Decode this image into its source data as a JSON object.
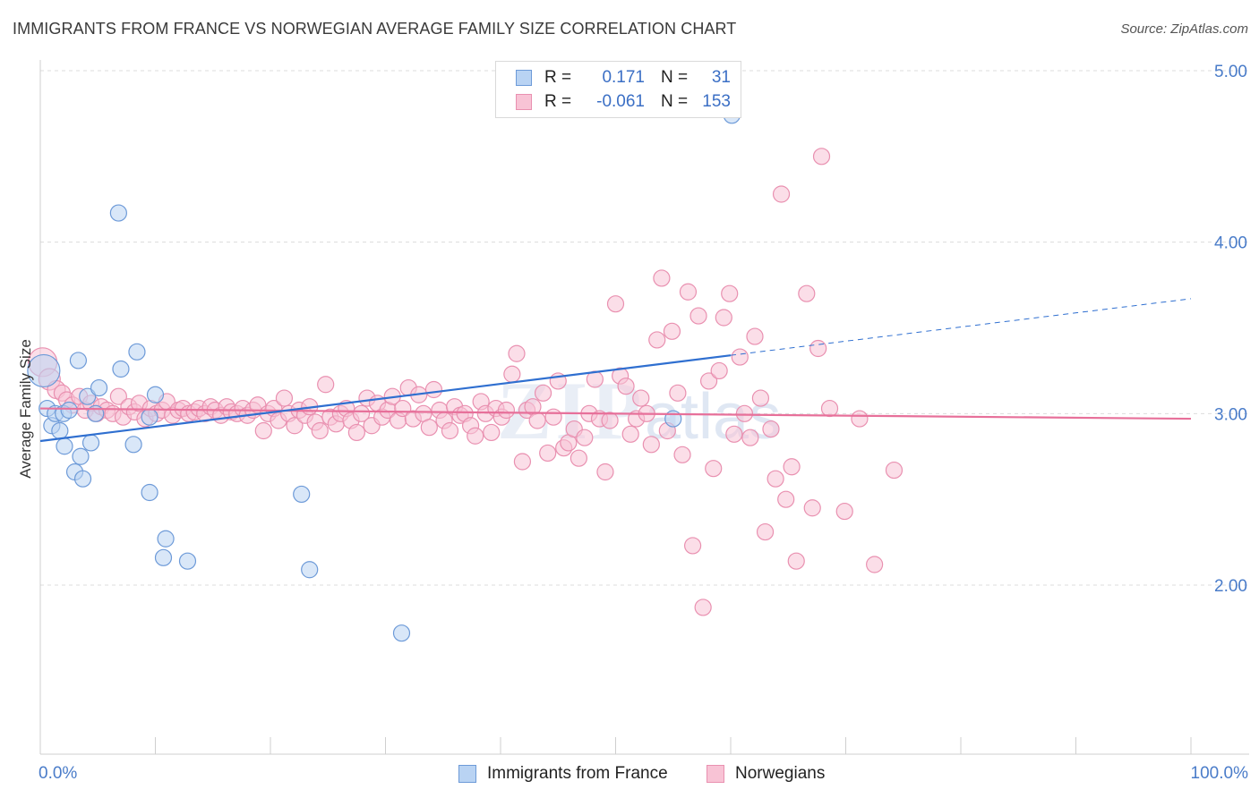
{
  "title": "IMMIGRANTS FROM FRANCE VS NORWEGIAN AVERAGE FAMILY SIZE CORRELATION CHART",
  "source": "Source: ZipAtlas.com",
  "legend": {
    "series1": {
      "r_label": "R =",
      "r_value": "0.171",
      "n_label": "N =",
      "n_value": "31"
    },
    "series2": {
      "r_label": "R =",
      "r_value": "-0.061",
      "n_label": "N =",
      "n_value": "153"
    }
  },
  "bottom_legend": {
    "series1": "Immigrants from France",
    "series2": "Norwegians"
  },
  "colors": {
    "blue_fill": "#b9d3f3",
    "blue_stroke": "#6d9ad8",
    "blue_line": "#2f6fd0",
    "pink_fill": "#f8c3d5",
    "pink_stroke": "#e990b0",
    "pink_line": "#e7709a",
    "axis_label": "#4a7cc9"
  },
  "chart_data": {
    "type": "scatter",
    "title": "IMMIGRANTS FROM FRANCE VS NORWEGIAN AVERAGE FAMILY SIZE CORRELATION CHART",
    "xlabel": "",
    "ylabel": "Average Family Size",
    "xlim": [
      0,
      100
    ],
    "ylim": [
      1.0,
      5.1
    ],
    "x_tick_labels": [
      "0.0%",
      "100.0%"
    ],
    "y_ticks": [
      2.0,
      3.0,
      4.0,
      5.0
    ],
    "y_tick_labels": [
      "2.00",
      "3.00",
      "4.00",
      "5.00"
    ],
    "grid": true,
    "legend_position": "top-center",
    "series": [
      {
        "name": "Immigrants from France",
        "r": 0.171,
        "n": 31,
        "trend": {
          "x0": 0,
          "y0": 2.84,
          "x1": 60,
          "y1": 3.34,
          "dashed_to_x": 100,
          "dashed_to_y": 3.67
        },
        "points": [
          [
            0.3,
            3.25,
            18
          ],
          [
            0.6,
            3.03,
            9
          ],
          [
            1.0,
            2.93,
            9
          ],
          [
            1.3,
            3.0,
            9
          ],
          [
            1.7,
            2.9,
            9
          ],
          [
            2.1,
            2.81,
            9
          ],
          [
            2.0,
            3.0,
            9
          ],
          [
            2.5,
            3.02,
            9
          ],
          [
            3.0,
            2.66,
            9
          ],
          [
            3.3,
            3.31,
            9
          ],
          [
            3.5,
            2.75,
            9
          ],
          [
            3.7,
            2.62,
            9
          ],
          [
            4.1,
            3.1,
            9
          ],
          [
            4.4,
            2.83,
            9
          ],
          [
            4.8,
            3.0,
            9
          ],
          [
            5.1,
            3.15,
            9
          ],
          [
            6.8,
            4.17,
            9
          ],
          [
            7.0,
            3.26,
            9
          ],
          [
            8.1,
            2.82,
            9
          ],
          [
            8.4,
            3.36,
            9
          ],
          [
            9.5,
            2.54,
            9
          ],
          [
            9.5,
            2.98,
            9
          ],
          [
            10.0,
            3.11,
            9
          ],
          [
            10.9,
            2.27,
            9
          ],
          [
            10.7,
            2.16,
            9
          ],
          [
            12.8,
            2.14,
            9
          ],
          [
            22.7,
            2.53,
            9
          ],
          [
            23.4,
            2.09,
            9
          ],
          [
            31.4,
            1.72,
            9
          ],
          [
            60.1,
            4.74,
            9
          ],
          [
            55.0,
            2.97,
            9
          ]
        ]
      },
      {
        "name": "Norwegians",
        "r": -0.061,
        "n": 153,
        "trend": {
          "x0": 0,
          "y0": 3.03,
          "x1": 100,
          "y1": 2.97
        },
        "points": [
          [
            0.2,
            3.3,
            16
          ],
          [
            0.8,
            3.2,
            12
          ],
          [
            1.4,
            3.14,
            10
          ],
          [
            1.9,
            3.12,
            9
          ],
          [
            2.3,
            3.08,
            9
          ],
          [
            2.8,
            3.05,
            9
          ],
          [
            3.4,
            3.1,
            9
          ],
          [
            3.9,
            3.02,
            9
          ],
          [
            4.4,
            3.06,
            9
          ],
          [
            4.9,
            3.0,
            9
          ],
          [
            5.3,
            3.04,
            9
          ],
          [
            5.8,
            3.02,
            9
          ],
          [
            6.3,
            3.0,
            9
          ],
          [
            6.8,
            3.1,
            9
          ],
          [
            7.2,
            2.98,
            9
          ],
          [
            7.7,
            3.04,
            9
          ],
          [
            8.2,
            3.01,
            9
          ],
          [
            8.6,
            3.06,
            9
          ],
          [
            9.1,
            2.97,
            9
          ],
          [
            9.6,
            3.03,
            9
          ],
          [
            10.1,
            3.0,
            9
          ],
          [
            10.6,
            3.02,
            9
          ],
          [
            11.0,
            3.07,
            9
          ],
          [
            11.5,
            2.99,
            9
          ],
          [
            12.0,
            3.02,
            9
          ],
          [
            12.4,
            3.03,
            9
          ],
          [
            12.9,
            3.0,
            9
          ],
          [
            13.4,
            3.01,
            9
          ],
          [
            13.8,
            3.03,
            9
          ],
          [
            14.3,
            3.0,
            9
          ],
          [
            14.8,
            3.04,
            9
          ],
          [
            15.2,
            3.02,
            9
          ],
          [
            15.7,
            2.99,
            9
          ],
          [
            16.2,
            3.04,
            9
          ],
          [
            16.6,
            3.01,
            9
          ],
          [
            17.1,
            3.0,
            9
          ],
          [
            17.6,
            3.03,
            9
          ],
          [
            18.0,
            2.99,
            9
          ],
          [
            18.5,
            3.02,
            9
          ],
          [
            18.9,
            3.05,
            9
          ],
          [
            19.4,
            2.9,
            9
          ],
          [
            19.8,
            3.0,
            9
          ],
          [
            20.3,
            3.03,
            9
          ],
          [
            20.7,
            2.96,
            9
          ],
          [
            21.2,
            3.09,
            9
          ],
          [
            21.6,
            3.0,
            9
          ],
          [
            22.1,
            2.93,
            9
          ],
          [
            22.5,
            3.02,
            9
          ],
          [
            23.0,
            2.99,
            9
          ],
          [
            23.4,
            3.04,
            9
          ],
          [
            23.9,
            2.95,
            9
          ],
          [
            24.3,
            2.9,
            9
          ],
          [
            24.8,
            3.17,
            9
          ],
          [
            25.2,
            2.98,
            9
          ],
          [
            25.7,
            2.94,
            9
          ],
          [
            26.1,
            3.0,
            9
          ],
          [
            26.6,
            3.03,
            9
          ],
          [
            27.0,
            2.96,
            9
          ],
          [
            27.5,
            2.89,
            9
          ],
          [
            27.9,
            3.0,
            9
          ],
          [
            28.4,
            3.09,
            9
          ],
          [
            28.8,
            2.93,
            9
          ],
          [
            29.3,
            3.06,
            9
          ],
          [
            29.7,
            2.98,
            9
          ],
          [
            30.2,
            3.02,
            9
          ],
          [
            30.6,
            3.1,
            9
          ],
          [
            31.1,
            2.96,
            9
          ],
          [
            31.5,
            3.03,
            9
          ],
          [
            32.0,
            3.15,
            9
          ],
          [
            32.4,
            2.97,
            9
          ],
          [
            32.9,
            3.11,
            9
          ],
          [
            33.3,
            3.0,
            9
          ],
          [
            33.8,
            2.92,
            9
          ],
          [
            34.2,
            3.14,
            9
          ],
          [
            34.7,
            3.02,
            9
          ],
          [
            35.1,
            2.96,
            9
          ],
          [
            35.6,
            2.9,
            9
          ],
          [
            36.0,
            3.04,
            9
          ],
          [
            36.5,
            2.99,
            9
          ],
          [
            36.9,
            3.0,
            9
          ],
          [
            37.4,
            2.93,
            9
          ],
          [
            37.8,
            2.87,
            9
          ],
          [
            38.3,
            3.07,
            9
          ],
          [
            38.7,
            3.0,
            9
          ],
          [
            39.2,
            2.89,
            9
          ],
          [
            39.6,
            3.03,
            9
          ],
          [
            40.1,
            2.98,
            9
          ],
          [
            40.5,
            3.02,
            9
          ],
          [
            41.0,
            3.23,
            9
          ],
          [
            41.4,
            3.35,
            9
          ],
          [
            41.9,
            2.72,
            9
          ],
          [
            42.3,
            3.02,
            9
          ],
          [
            42.8,
            3.04,
            9
          ],
          [
            43.2,
            2.96,
            9
          ],
          [
            43.7,
            3.12,
            9
          ],
          [
            44.1,
            2.77,
            9
          ],
          [
            44.6,
            2.98,
            9
          ],
          [
            45.0,
            3.19,
            9
          ],
          [
            45.5,
            2.8,
            9
          ],
          [
            45.9,
            2.83,
            9
          ],
          [
            46.4,
            2.91,
            9
          ],
          [
            46.8,
            2.74,
            9
          ],
          [
            47.3,
            2.86,
            9
          ],
          [
            47.7,
            3.0,
            9
          ],
          [
            48.2,
            3.2,
            9
          ],
          [
            48.6,
            2.97,
            9
          ],
          [
            49.1,
            2.66,
            9
          ],
          [
            49.5,
            2.96,
            9
          ],
          [
            50.0,
            3.64,
            9
          ],
          [
            50.4,
            3.22,
            9
          ],
          [
            50.9,
            3.16,
            9
          ],
          [
            51.3,
            2.88,
            9
          ],
          [
            51.8,
            2.97,
            9
          ],
          [
            52.2,
            3.09,
            9
          ],
          [
            52.7,
            3.0,
            9
          ],
          [
            53.1,
            2.82,
            9
          ],
          [
            53.6,
            3.43,
            9
          ],
          [
            54.0,
            3.79,
            9
          ],
          [
            54.5,
            2.9,
            9
          ],
          [
            54.9,
            3.48,
            9
          ],
          [
            55.4,
            3.12,
            9
          ],
          [
            55.8,
            2.76,
            9
          ],
          [
            56.3,
            3.71,
            9
          ],
          [
            56.7,
            2.23,
            9
          ],
          [
            57.2,
            3.57,
            9
          ],
          [
            57.6,
            1.87,
            9
          ],
          [
            58.1,
            3.19,
            9
          ],
          [
            58.5,
            2.68,
            9
          ],
          [
            59.0,
            3.25,
            9
          ],
          [
            59.4,
            3.56,
            9
          ],
          [
            59.9,
            3.7,
            9
          ],
          [
            60.3,
            2.88,
            9
          ],
          [
            60.8,
            3.33,
            9
          ],
          [
            61.2,
            3.0,
            9
          ],
          [
            61.7,
            2.86,
            9
          ],
          [
            62.1,
            3.45,
            9
          ],
          [
            62.6,
            3.09,
            9
          ],
          [
            63.0,
            2.31,
            9
          ],
          [
            63.5,
            2.91,
            9
          ],
          [
            63.9,
            2.62,
            9
          ],
          [
            64.4,
            4.28,
            9
          ],
          [
            64.8,
            2.5,
            9
          ],
          [
            65.3,
            2.69,
            9
          ],
          [
            65.7,
            2.14,
            9
          ],
          [
            66.6,
            3.7,
            9
          ],
          [
            67.1,
            2.45,
            9
          ],
          [
            67.6,
            3.38,
            9
          ],
          [
            67.9,
            4.5,
            9
          ],
          [
            68.6,
            3.03,
            9
          ],
          [
            69.9,
            2.43,
            9
          ],
          [
            71.2,
            2.97,
            9
          ],
          [
            72.5,
            2.12,
            9
          ],
          [
            74.2,
            2.67,
            9
          ]
        ]
      }
    ]
  }
}
